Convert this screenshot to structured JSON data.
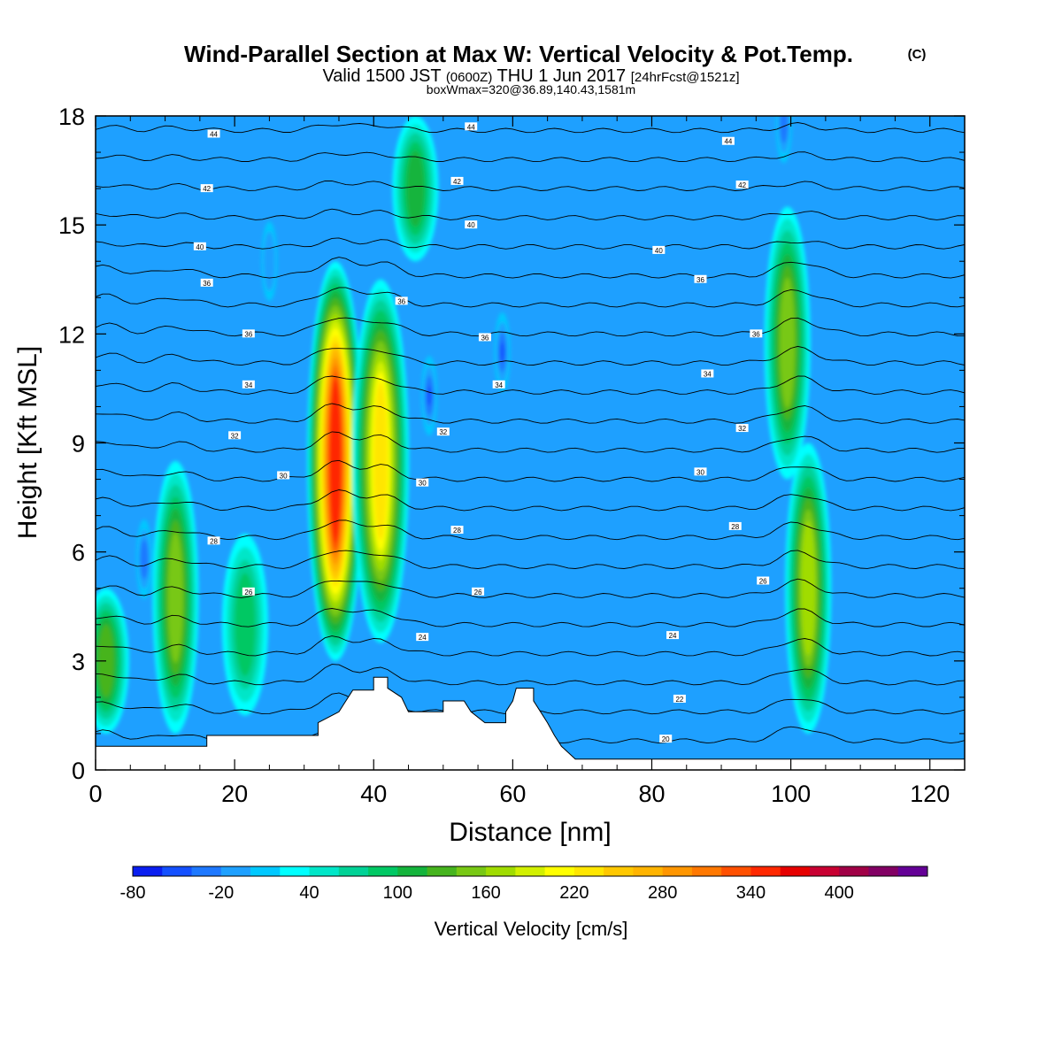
{
  "header": {
    "title": "Wind-Parallel Section at Max W: Vertical Velocity & Pot.Temp.",
    "copyright": "(C)",
    "valid_prefix": "Valid 1500 JST",
    "valid_utc": "(0600Z)",
    "valid_date": "THU 1 Jun 2017",
    "forecast": "[24hrFcst@1521z]",
    "box_info": "boxWmax=320@36.89,140.43,1581m"
  },
  "chart_data": {
    "type": "heatmap",
    "title": "Wind-Parallel Section at Max W: Vertical Velocity & Pot.Temp.",
    "xlabel": "Distance [nm]",
    "ylabel": "Height [Kft MSL]",
    "xlim": [
      0,
      125
    ],
    "ylim": [
      0,
      18
    ],
    "x_ticks": [
      "0",
      "20",
      "40",
      "60",
      "80",
      "100",
      "120"
    ],
    "y_ticks": [
      "0",
      "3",
      "6",
      "9",
      "12",
      "15",
      "18"
    ],
    "colorbar": {
      "label": "Vertical Velocity [cm/s]",
      "min": -80,
      "step": 20,
      "tick_labels": [
        "-80",
        "-20",
        "40",
        "100",
        "160",
        "220",
        "280",
        "340",
        "400"
      ],
      "colors": [
        "#0a1ef0",
        "#1450ff",
        "#1e78ff",
        "#1ea0ff",
        "#00c8ff",
        "#00ffff",
        "#00e6c8",
        "#00d296",
        "#00c864",
        "#14b43c",
        "#46b41e",
        "#78c814",
        "#a0dc00",
        "#d2f000",
        "#ffff00",
        "#ffe600",
        "#ffc800",
        "#ffb400",
        "#ff9600",
        "#ff7800",
        "#ff5000",
        "#ff2800",
        "#e60000",
        "#c80032",
        "#a00046",
        "#820064",
        "#640096"
      ]
    },
    "updrafts": [
      {
        "x": 1.5,
        "y_bottom": 1.0,
        "y_top": 5.0,
        "w_max": 120
      },
      {
        "x": 11.5,
        "y_bottom": 1.0,
        "y_top": 8.5,
        "w_max": 150
      },
      {
        "x": 21.5,
        "y_bottom": 1.5,
        "y_top": 6.5,
        "w_max": 80
      },
      {
        "x": 34.5,
        "y_bottom": 3.0,
        "y_top": 14.0,
        "w_max": 340
      },
      {
        "x": 41.0,
        "y_bottom": 3.5,
        "y_top": 13.5,
        "w_max": 220
      },
      {
        "x": 46.0,
        "y_bottom": 14.0,
        "y_top": 18.0,
        "w_max": 100
      },
      {
        "x": 99.5,
        "y_bottom": 8.0,
        "y_top": 15.5,
        "w_max": 140
      },
      {
        "x": 102.5,
        "y_bottom": 1.0,
        "y_top": 9.0,
        "w_max": 160
      }
    ],
    "downdrafts": [
      {
        "x": 7.0,
        "y": 5.8,
        "w_min": -40
      },
      {
        "x": 48.0,
        "y": 10.3,
        "w_min": -60
      },
      {
        "x": 58.5,
        "y": 11.5,
        "w_min": -60
      },
      {
        "x": 25.0,
        "y": 14.0,
        "w_min": -20
      },
      {
        "x": 99.0,
        "y": 17.8,
        "w_min": -40
      }
    ],
    "potential_temperature_contours": {
      "base_heights_kft": [
        0.8,
        1.6,
        2.4,
        3.2,
        4.0,
        4.8,
        5.6,
        6.4,
        7.2,
        8.0,
        8.8,
        9.6,
        10.4,
        11.2,
        12.0,
        12.8,
        13.6,
        14.4,
        15.2,
        16.0,
        16.8,
        17.6
      ],
      "labels": [
        {
          "text": "20",
          "x": 82,
          "y": 0.85
        },
        {
          "text": "22",
          "x": 84,
          "y": 1.95
        },
        {
          "text": "24",
          "x": 47,
          "y": 3.65
        },
        {
          "text": "24",
          "x": 83,
          "y": 3.7
        },
        {
          "text": "26",
          "x": 22,
          "y": 4.9
        },
        {
          "text": "26",
          "x": 55,
          "y": 4.9
        },
        {
          "text": "26",
          "x": 96,
          "y": 5.2
        },
        {
          "text": "28",
          "x": 17,
          "y": 6.3
        },
        {
          "text": "28",
          "x": 52,
          "y": 6.6
        },
        {
          "text": "28",
          "x": 92,
          "y": 6.7
        },
        {
          "text": "30",
          "x": 27,
          "y": 8.1
        },
        {
          "text": "30",
          "x": 47,
          "y": 7.9
        },
        {
          "text": "30",
          "x": 87,
          "y": 8.2
        },
        {
          "text": "32",
          "x": 20,
          "y": 9.2
        },
        {
          "text": "32",
          "x": 50,
          "y": 9.3
        },
        {
          "text": "32",
          "x": 93,
          "y": 9.4
        },
        {
          "text": "34",
          "x": 22,
          "y": 10.6
        },
        {
          "text": "34",
          "x": 58,
          "y": 10.6
        },
        {
          "text": "34",
          "x": 88,
          "y": 10.9
        },
        {
          "text": "36",
          "x": 22,
          "y": 12.0
        },
        {
          "text": "36",
          "x": 56,
          "y": 11.9
        },
        {
          "text": "36",
          "x": 95,
          "y": 12.0
        },
        {
          "text": "36",
          "x": 16,
          "y": 13.4
        },
        {
          "text": "36",
          "x": 44,
          "y": 12.9
        },
        {
          "text": "36",
          "x": 87,
          "y": 13.5
        },
        {
          "text": "40",
          "x": 15,
          "y": 14.4
        },
        {
          "text": "40",
          "x": 54,
          "y": 15.0
        },
        {
          "text": "40",
          "x": 81,
          "y": 14.3
        },
        {
          "text": "42",
          "x": 16,
          "y": 16.0
        },
        {
          "text": "42",
          "x": 52,
          "y": 16.2
        },
        {
          "text": "42",
          "x": 93,
          "y": 16.1
        },
        {
          "text": "44",
          "x": 17,
          "y": 17.5
        },
        {
          "text": "44",
          "x": 54,
          "y": 17.7
        },
        {
          "text": "44",
          "x": 91,
          "y": 17.3
        }
      ]
    },
    "terrain_kft": [
      [
        0,
        0.65
      ],
      [
        16,
        0.65
      ],
      [
        16,
        0.95
      ],
      [
        32,
        0.95
      ],
      [
        32,
        1.3
      ],
      [
        35,
        1.6
      ],
      [
        36,
        1.9
      ],
      [
        37,
        2.2
      ],
      [
        40,
        2.2
      ],
      [
        40,
        2.55
      ],
      [
        42,
        2.55
      ],
      [
        42,
        2.25
      ],
      [
        44,
        2.0
      ],
      [
        45,
        1.6
      ],
      [
        50,
        1.6
      ],
      [
        50,
        1.9
      ],
      [
        53,
        1.9
      ],
      [
        54,
        1.6
      ],
      [
        56,
        1.3
      ],
      [
        59,
        1.3
      ],
      [
        59,
        1.6
      ],
      [
        60,
        1.9
      ],
      [
        60.5,
        2.25
      ],
      [
        63,
        2.25
      ],
      [
        63,
        1.9
      ],
      [
        64,
        1.6
      ],
      [
        65,
        1.3
      ],
      [
        66,
        0.95
      ],
      [
        67,
        0.65
      ],
      [
        69,
        0.3
      ],
      [
        125,
        0.3
      ]
    ]
  }
}
